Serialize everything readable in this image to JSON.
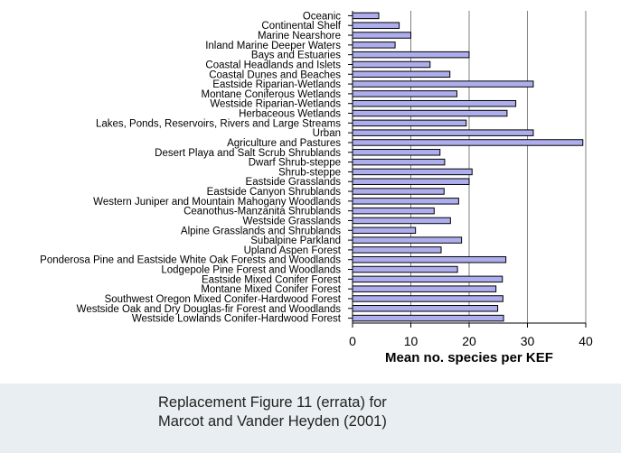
{
  "chart_data": {
    "type": "bar",
    "orientation": "horizontal",
    "categories": [
      "Oceanic",
      "Continental Shelf",
      "Marine Nearshore",
      "Inland Marine Deeper Waters",
      "Bays and Estuaries",
      "Coastal Headlands and Islets",
      "Coastal Dunes and Beaches",
      "Eastside Riparian-Wetlands",
      "Montane Coniferous Wetlands",
      "Westside Riparian-Wetlands",
      "Herbaceous Wetlands",
      "Lakes, Ponds, Reservoirs, Rivers and Large Streams",
      "Urban",
      "Agriculture and Pastures",
      "Desert Playa and Salt Scrub Shrublands",
      "Dwarf Shrub-steppe",
      "Shrub-steppe",
      "Eastside Grasslands",
      "Eastside Canyon Shrublands",
      "Western Juniper and Mountain Mahogany Woodlands",
      "Ceanothus-Manzanita Shrublands",
      "Westside Grasslands",
      "Alpine Grasslands and Shrublands",
      "Subalpine Parkland",
      "Upland Aspen Forest",
      "Ponderosa Pine and Eastside White Oak Forests and Woodlands",
      "Lodgepole Pine Forest and Woodlands",
      "Eastside Mixed Conifer Forest",
      "Montane Mixed Conifer Forest",
      "Southwest Oregon Mixed Conifer-Hardwood Forest",
      "Westside Oak and Dry Douglas-fir Forest and Woodlands",
      "Westside Lowlands Conifer-Hardwood Forest"
    ],
    "values": [
      4.5,
      8,
      10,
      7.3,
      20,
      13.3,
      16.7,
      31,
      17.9,
      28,
      26.5,
      19.5,
      31,
      39.5,
      15,
      15.8,
      20.5,
      20,
      15.7,
      18.2,
      14,
      16.8,
      10.8,
      18.7,
      15.2,
      26.3,
      18,
      25.7,
      24.6,
      25.8,
      24.9,
      25.9
    ],
    "title": "",
    "xlabel": "Mean no. species per KEF",
    "ylabel": "",
    "xlim": [
      0,
      40
    ],
    "xticks": [
      0,
      10,
      20,
      30,
      40
    ],
    "grid": true,
    "bar_color": "#aeaeee",
    "bar_edge_color": "#000000",
    "grid_color": "#808080"
  },
  "caption": {
    "line1": "Replacement Figure 11 (errata) for",
    "line2": "Marcot and Vander Heyden (2001)"
  }
}
